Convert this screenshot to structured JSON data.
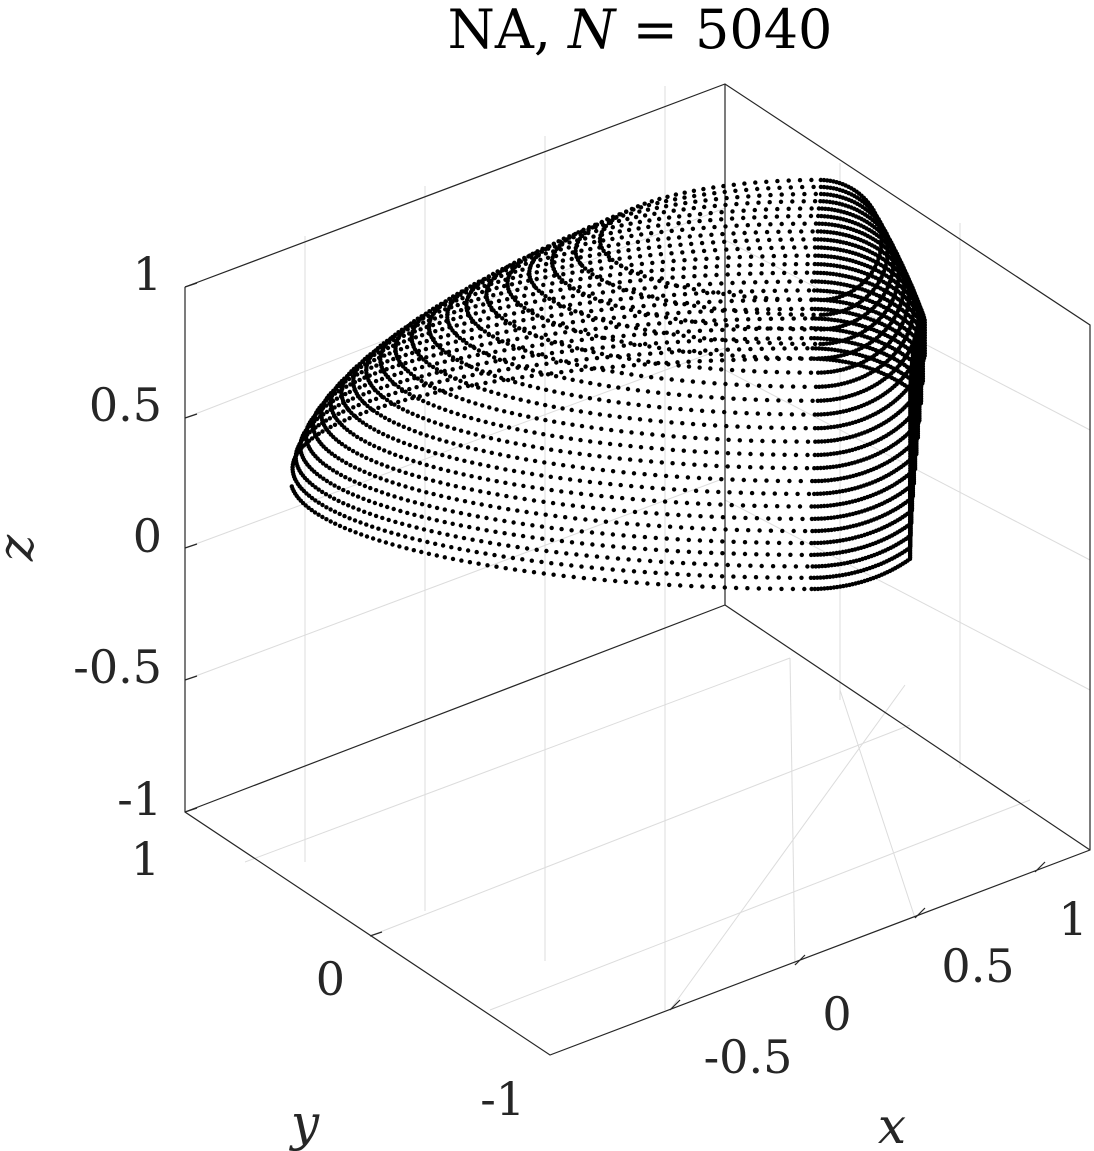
{
  "chart_data": {
    "type": "scatter",
    "dimensions": 3,
    "title_parts": {
      "prefix": "NA, ",
      "var": "N",
      "rest": " = 5040"
    },
    "xlabel": "x",
    "ylabel": "y",
    "zlabel": "z",
    "xlim": [
      -1,
      1
    ],
    "ylim": [
      -1,
      1
    ],
    "zlim": [
      -1,
      1
    ],
    "xticks": [
      "-0.5",
      "0",
      "0.5",
      "1"
    ],
    "yticks": [
      "-1",
      "0",
      "1"
    ],
    "zticks": [
      "-1",
      "-0.5",
      "0",
      "0.5",
      "1"
    ],
    "grid": true,
    "marker_color": "#000000",
    "n_points": 5040,
    "surface": "closed nodal surface"
  }
}
